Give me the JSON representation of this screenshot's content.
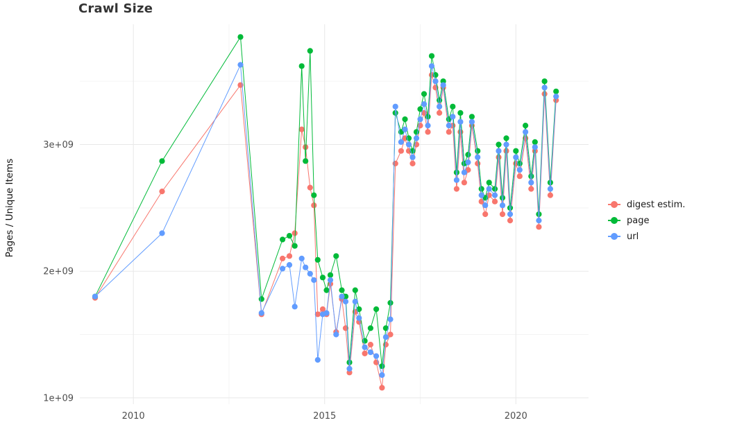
{
  "chart_data": {
    "type": "line",
    "title": "Crawl Size",
    "xlabel": "",
    "ylabel": "Pages / Unique Items",
    "y_unit": "1e9",
    "grid": true,
    "legend_position": "right",
    "background": "#FFFFFF",
    "xlim": [
      2008.6,
      2021.9
    ],
    "ylim": [
      0.95,
      3.95
    ],
    "xticks": [
      {
        "value": 2010,
        "label": "2010"
      },
      {
        "value": 2015,
        "label": "2015"
      },
      {
        "value": 2020,
        "label": "2020"
      }
    ],
    "yticks": [
      {
        "value": 1,
        "label": "1e+09"
      },
      {
        "value": 2,
        "label": "2e+09"
      },
      {
        "value": 3,
        "label": "3e+09"
      }
    ],
    "x_minor_ticks": [
      2012.5,
      2017.5
    ],
    "y_minor_ticks": [
      1.5,
      2.5,
      3.5
    ],
    "x": [
      2009.0,
      2010.75,
      2012.8,
      2013.35,
      2013.9,
      2014.08,
      2014.22,
      2014.4,
      2014.5,
      2014.62,
      2014.72,
      2014.82,
      2014.95,
      2015.05,
      2015.15,
      2015.3,
      2015.45,
      2015.55,
      2015.65,
      2015.8,
      2015.9,
      2016.05,
      2016.2,
      2016.35,
      2016.5,
      2016.6,
      2016.72,
      2016.85,
      2017.0,
      2017.1,
      2017.2,
      2017.3,
      2017.4,
      2017.5,
      2017.6,
      2017.7,
      2017.8,
      2017.9,
      2018.0,
      2018.1,
      2018.25,
      2018.35,
      2018.45,
      2018.55,
      2018.65,
      2018.75,
      2018.85,
      2019.0,
      2019.1,
      2019.2,
      2019.3,
      2019.45,
      2019.55,
      2019.65,
      2019.75,
      2019.85,
      2020.0,
      2020.1,
      2020.25,
      2020.4,
      2020.5,
      2020.6,
      2020.75,
      2020.9,
      2021.05
    ],
    "series": [
      {
        "name": "digest estim.",
        "color": "#F8766D",
        "values": [
          1.79,
          2.63,
          3.47,
          1.66,
          2.1,
          2.12,
          2.3,
          3.12,
          2.98,
          2.66,
          2.52,
          1.66,
          1.7,
          1.66,
          1.9,
          1.52,
          1.78,
          1.55,
          1.2,
          1.68,
          1.6,
          1.35,
          1.42,
          1.28,
          1.08,
          1.42,
          1.5,
          2.85,
          2.95,
          3.05,
          2.95,
          2.85,
          3.0,
          3.15,
          3.25,
          3.1,
          3.55,
          3.45,
          3.25,
          3.45,
          3.1,
          3.15,
          2.65,
          3.1,
          2.7,
          2.8,
          3.15,
          2.85,
          2.55,
          2.45,
          2.6,
          2.55,
          2.9,
          2.45,
          2.95,
          2.4,
          2.85,
          2.75,
          3.05,
          2.65,
          2.95,
          2.35,
          3.4,
          2.6,
          3.35
        ]
      },
      {
        "name": "page",
        "color": "#00BA38",
        "values": [
          1.8,
          2.87,
          3.85,
          1.78,
          2.25,
          2.28,
          2.2,
          3.62,
          2.87,
          3.74,
          2.6,
          2.09,
          1.95,
          1.85,
          1.97,
          2.12,
          1.85,
          1.8,
          1.28,
          1.85,
          1.7,
          1.45,
          1.55,
          1.7,
          1.25,
          1.55,
          1.75,
          3.25,
          3.1,
          3.2,
          3.05,
          2.95,
          3.1,
          3.28,
          3.4,
          3.22,
          3.7,
          3.55,
          3.35,
          3.5,
          3.2,
          3.3,
          2.78,
          3.25,
          2.85,
          2.92,
          3.22,
          2.95,
          2.65,
          2.58,
          2.7,
          2.65,
          3.0,
          2.58,
          3.05,
          2.5,
          2.95,
          2.85,
          3.15,
          2.75,
          3.02,
          2.45,
          3.5,
          2.7,
          3.42
        ]
      },
      {
        "name": "url",
        "color": "#619CFF",
        "values": [
          1.8,
          2.3,
          3.63,
          1.67,
          2.02,
          2.05,
          1.72,
          2.1,
          2.03,
          1.98,
          1.93,
          1.3,
          1.66,
          1.67,
          1.93,
          1.5,
          1.8,
          1.76,
          1.23,
          1.76,
          1.63,
          1.4,
          1.36,
          1.33,
          1.18,
          1.48,
          1.62,
          3.3,
          3.02,
          3.12,
          3.0,
          2.9,
          3.05,
          3.2,
          3.32,
          3.15,
          3.62,
          3.5,
          3.3,
          3.47,
          3.15,
          3.22,
          2.72,
          3.18,
          2.78,
          2.86,
          3.18,
          2.9,
          2.6,
          2.52,
          2.65,
          2.6,
          2.95,
          2.52,
          3.0,
          2.45,
          2.9,
          2.8,
          3.1,
          2.7,
          2.98,
          2.4,
          3.45,
          2.65,
          3.38
        ]
      }
    ]
  }
}
